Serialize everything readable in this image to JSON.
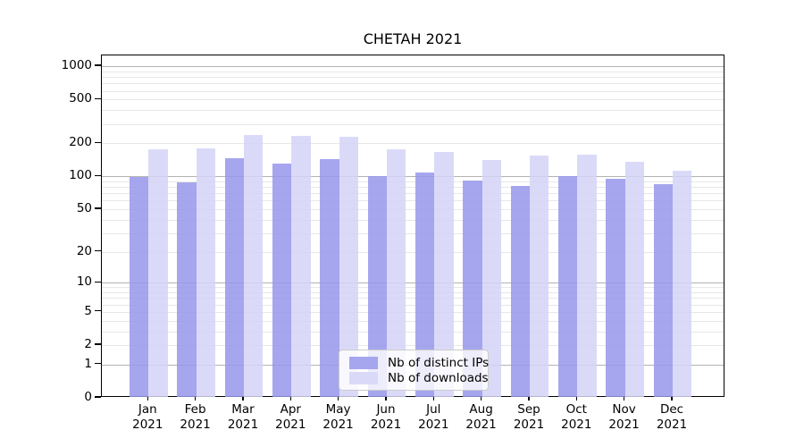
{
  "chart_data": {
    "type": "bar",
    "title": "CHETAH 2021",
    "categories": [
      "Jan 2021",
      "Feb 2021",
      "Mar 2021",
      "Apr 2021",
      "May 2021",
      "Jun 2021",
      "Jul 2021",
      "Aug 2021",
      "Sep 2021",
      "Oct 2021",
      "Nov 2021",
      "Dec 2021"
    ],
    "x_tick_months": [
      "Jan",
      "Feb",
      "Mar",
      "Apr",
      "May",
      "Jun",
      "Jul",
      "Aug",
      "Sep",
      "Oct",
      "Nov",
      "Dec"
    ],
    "x_tick_year": "2021",
    "series": [
      {
        "name": "Nb of distinct IPs",
        "color_solid": "#a6a6ee",
        "color_bar": "rgba(150,150,235,0.85)",
        "values": [
          98,
          89,
          146,
          131,
          145,
          101,
          109,
          92,
          82,
          100,
          95,
          85
        ]
      },
      {
        "name": "Nb of downloads",
        "color_solid": "#dadaf8",
        "color_bar": "rgba(211,211,247,0.85)",
        "values": [
          176,
          180,
          240,
          232,
          230,
          177,
          168,
          141,
          155,
          159,
          135,
          112
        ]
      }
    ],
    "ylabel": "",
    "xlabel": "",
    "yscale": "log1p (log10 of 1+y), 0 at baseline",
    "yticks": [
      1000,
      500,
      200,
      100,
      50,
      20,
      10,
      5,
      2,
      1,
      0
    ],
    "major_grid_values": [
      1,
      10,
      100,
      1000
    ],
    "minor_grid_decades": [
      1,
      10,
      100
    ],
    "ylim": [
      0,
      1250
    ],
    "grid": true,
    "legend_position": "lower center inside plot",
    "legend_entries": [
      "Nb of distinct IPs",
      "Nb of downloads"
    ]
  }
}
